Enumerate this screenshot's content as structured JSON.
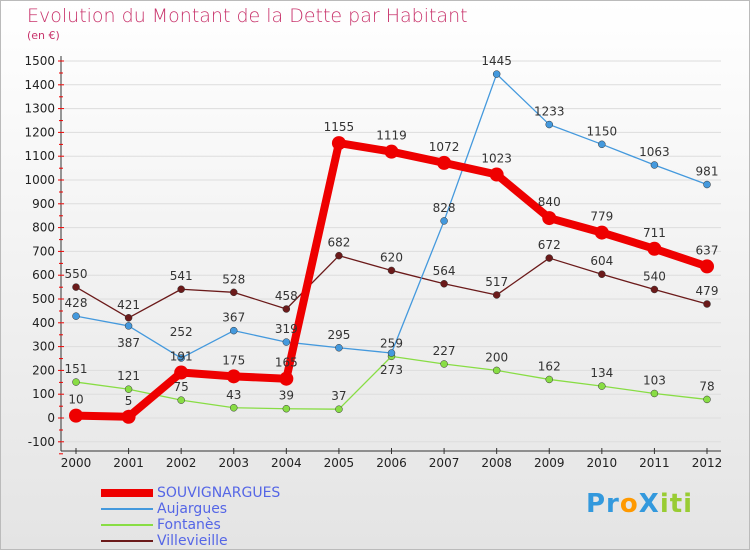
{
  "title": "Evolution du Montant de la Dette par Habitant",
  "subtitle": "(en €)",
  "logo": "ProXiti",
  "chart_data": {
    "type": "line",
    "title": "Evolution du Montant de la Dette par Habitant",
    "ylabel": "(en €)",
    "x": [
      2000,
      2001,
      2002,
      2003,
      2004,
      2005,
      2006,
      2007,
      2008,
      2009,
      2010,
      2011,
      2012
    ],
    "ylim": [
      -100,
      1500
    ],
    "yticks": [
      -100,
      0,
      100,
      200,
      300,
      400,
      500,
      600,
      700,
      800,
      900,
      1000,
      1100,
      1200,
      1300,
      1400,
      1500
    ],
    "legend": "bottom-left",
    "series": [
      {
        "name": "Villevieille",
        "color": "#6b1a1a",
        "values": [
          550,
          421,
          541,
          528,
          458,
          682,
          620,
          564,
          517,
          672,
          604,
          540,
          479
        ]
      },
      {
        "name": "Fontanès",
        "color": "#88dd44",
        "values": [
          151,
          121,
          75,
          43,
          39,
          37,
          259,
          227,
          200,
          162,
          134,
          103,
          78
        ]
      },
      {
        "name": "Aujargues",
        "color": "#4499dd",
        "values": [
          428,
          387,
          252,
          367,
          319,
          295,
          273,
          828,
          1445,
          1233,
          1150,
          1063,
          981
        ]
      },
      {
        "name": "SOUVIGNARGUES",
        "color": "#ee0000",
        "values": [
          10,
          5,
          191,
          175,
          165,
          1155,
          1119,
          1072,
          1023,
          840,
          779,
          711,
          637
        ]
      }
    ]
  }
}
